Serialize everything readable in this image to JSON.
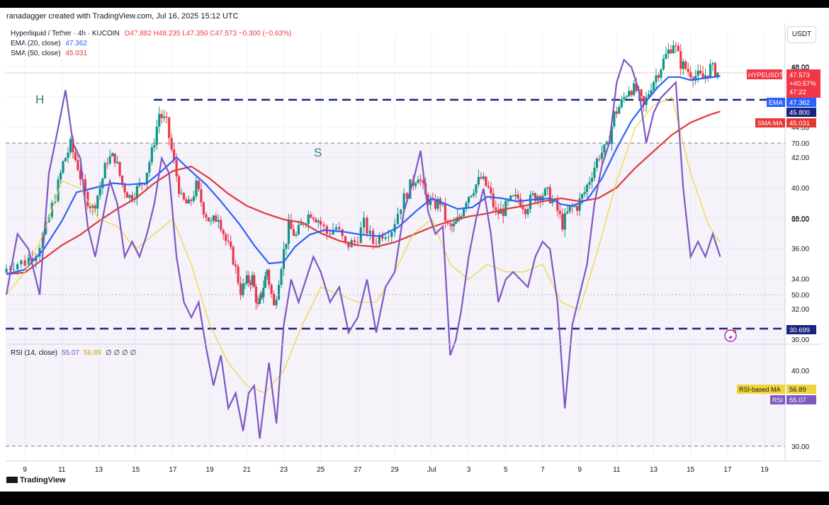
{
  "header": {
    "credit": "ranadagger created with TradingView.com, Jul 16, 2025 15:12 UTC",
    "symbol": "Hyperliquid / Tether · 4h · KUCOIN",
    "ohlc": {
      "o": "O47.882",
      "h": "H48.235",
      "l": "L47.350",
      "c": "C47.573",
      "chg": "−0.300 (−0.63%)"
    },
    "ema_label": "EMA (20, close)",
    "ema_value": "47.362",
    "sma_label": "SMA (50, close)",
    "sma_value": "45.031",
    "currency": "USDT"
  },
  "annotations": {
    "head": "H",
    "shoulder": "S"
  },
  "price_labels": {
    "symbol": "HYPEUSDT",
    "price": "47.573",
    "pct": "+40.57%",
    "countdown": "47:22",
    "ema_tag": "EMA",
    "ema": "47.362",
    "level_upper": "45.800",
    "sma_tag": "SMA:MA",
    "sma": "45.031",
    "level_lower": "30.699"
  },
  "rsi_header": {
    "label": "RSI (14, close)",
    "rsi": "55.07",
    "ma": "56.89",
    "extra": "∅ ∅ ∅ ∅"
  },
  "rsi_labels": {
    "ma_tag": "RSI-based MA",
    "ma": "56.89",
    "rsi_tag": "RSI",
    "rsi": "55.07"
  },
  "footer": {
    "logo": "TradingView"
  },
  "colors": {
    "up": "#089981",
    "down": "#f23645",
    "ema": "#2962ff",
    "sma": "#e53935",
    "rsi": "#7e57c2",
    "rsi_ma": "#f0d33a",
    "level": "#1a237e"
  },
  "chart_data": [
    {
      "type": "candlestick",
      "title": "Hyperliquid / Tether · 4h · KUCOIN",
      "ylim": [
        30,
        50
      ],
      "y_ticks": [
        30,
        32,
        34,
        36,
        38,
        40,
        42,
        44,
        46,
        48
      ],
      "x_ticks": [
        "9",
        "11",
        "13",
        "15",
        "17",
        "19",
        "21",
        "23",
        "25",
        "27",
        "29",
        "Jul",
        "3",
        "5",
        "7",
        "9",
        "11",
        "13",
        "15",
        "17",
        "19"
      ],
      "close_path": [
        [
          8.0,
          34.5
        ],
        [
          8.6,
          35.0
        ],
        [
          9.2,
          35.1
        ],
        [
          9.8,
          35.8
        ],
        [
          10.3,
          37.3
        ],
        [
          10.8,
          39.5
        ],
        [
          11.2,
          41.6
        ],
        [
          11.6,
          42.8
        ],
        [
          12.0,
          41.4
        ],
        [
          12.4,
          39.5
        ],
        [
          12.8,
          38.6
        ],
        [
          13.2,
          40.0
        ],
        [
          13.6,
          41.9
        ],
        [
          14.0,
          42.0
        ],
        [
          14.4,
          40.2
        ],
        [
          14.8,
          39.4
        ],
        [
          15.2,
          39.9
        ],
        [
          15.6,
          40.6
        ],
        [
          16.0,
          42.3
        ],
        [
          16.4,
          44.9
        ],
        [
          16.8,
          44.2
        ],
        [
          17.2,
          41.6
        ],
        [
          17.6,
          39.2
        ],
        [
          18.0,
          38.8
        ],
        [
          18.4,
          40.1
        ],
        [
          18.8,
          38.6
        ],
        [
          19.2,
          37.6
        ],
        [
          19.6,
          38.2
        ],
        [
          20.0,
          36.5
        ],
        [
          20.4,
          35.3
        ],
        [
          20.8,
          33.2
        ],
        [
          21.1,
          33.8
        ],
        [
          21.4,
          34.0
        ],
        [
          21.7,
          32.1
        ],
        [
          21.9,
          33.0
        ],
        [
          22.2,
          34.6
        ],
        [
          22.6,
          32.1
        ],
        [
          23.0,
          35.0
        ],
        [
          23.4,
          37.4
        ],
        [
          23.8,
          36.8
        ],
        [
          24.2,
          37.8
        ],
        [
          24.6,
          38.4
        ],
        [
          25.0,
          37.9
        ],
        [
          25.5,
          37.0
        ],
        [
          26.0,
          37.4
        ],
        [
          26.5,
          36.2
        ],
        [
          27.0,
          36.4
        ],
        [
          27.5,
          37.6
        ],
        [
          28.0,
          36.4
        ],
        [
          28.5,
          37.0
        ],
        [
          29.0,
          37.3
        ],
        [
          29.5,
          38.9
        ],
        [
          30.0,
          40.1
        ],
        [
          30.4,
          40.9
        ],
        [
          30.8,
          39.4
        ],
        [
          31.2,
          38.8
        ],
        [
          31.6,
          39.1
        ],
        [
          32.0,
          37.4
        ],
        [
          32.3,
          37.4
        ],
        [
          32.6,
          38.0
        ],
        [
          33.0,
          39.3
        ],
        [
          33.4,
          40.0
        ],
        [
          33.8,
          40.6
        ],
        [
          34.2,
          39.9
        ],
        [
          34.6,
          38.3
        ],
        [
          35.0,
          38.5
        ],
        [
          35.4,
          39.1
        ],
        [
          35.8,
          39.3
        ],
        [
          36.2,
          38.7
        ],
        [
          36.6,
          39.4
        ],
        [
          37.0,
          39.6
        ],
        [
          37.4,
          39.6
        ],
        [
          37.8,
          38.9
        ],
        [
          38.2,
          37.6
        ],
        [
          38.6,
          38.6
        ],
        [
          39.0,
          38.8
        ],
        [
          39.4,
          39.7
        ],
        [
          39.8,
          41.0
        ],
        [
          40.2,
          42.2
        ],
        [
          40.6,
          42.6
        ],
        [
          41.0,
          44.8
        ],
        [
          41.4,
          45.6
        ],
        [
          41.8,
          46.6
        ],
        [
          42.2,
          46.4
        ],
        [
          42.6,
          45.3
        ],
        [
          43.0,
          46.8
        ],
        [
          43.4,
          47.7
        ],
        [
          43.8,
          48.7
        ],
        [
          44.2,
          49.6
        ],
        [
          44.6,
          48.2
        ],
        [
          45.0,
          47.7
        ],
        [
          45.4,
          47.4
        ],
        [
          45.8,
          47.2
        ],
        [
          46.2,
          47.9
        ],
        [
          46.6,
          47.6
        ]
      ],
      "ema": [
        [
          8.0,
          34.3
        ],
        [
          9.0,
          34.6
        ],
        [
          10.0,
          35.9
        ],
        [
          11.0,
          37.8
        ],
        [
          11.8,
          39.7
        ],
        [
          12.8,
          40.0
        ],
        [
          13.8,
          40.3
        ],
        [
          14.6,
          40.2
        ],
        [
          15.6,
          40.3
        ],
        [
          16.4,
          41.1
        ],
        [
          17.2,
          42.0
        ],
        [
          17.8,
          41.3
        ],
        [
          18.8,
          40.2
        ],
        [
          19.6,
          39.1
        ],
        [
          20.6,
          37.6
        ],
        [
          21.4,
          36.2
        ],
        [
          22.2,
          35.0
        ],
        [
          23.0,
          35.1
        ],
        [
          23.6,
          36.1
        ],
        [
          24.4,
          36.9
        ],
        [
          25.2,
          37.2
        ],
        [
          26.2,
          37.1
        ],
        [
          27.2,
          36.9
        ],
        [
          28.2,
          36.8
        ],
        [
          29.2,
          37.4
        ],
        [
          30.2,
          38.5
        ],
        [
          31.0,
          39.3
        ],
        [
          31.8,
          38.9
        ],
        [
          32.4,
          38.6
        ],
        [
          33.2,
          38.7
        ],
        [
          34.0,
          39.4
        ],
        [
          34.8,
          39.3
        ],
        [
          35.6,
          39.1
        ],
        [
          36.4,
          39.2
        ],
        [
          37.4,
          39.3
        ],
        [
          38.0,
          38.9
        ],
        [
          38.6,
          38.8
        ],
        [
          39.4,
          39.2
        ],
        [
          40.2,
          40.6
        ],
        [
          41.0,
          42.6
        ],
        [
          41.8,
          44.4
        ],
        [
          42.6,
          45.7
        ],
        [
          43.2,
          46.6
        ],
        [
          43.8,
          47.3
        ],
        [
          44.4,
          47.3
        ],
        [
          45.0,
          47.1
        ],
        [
          45.6,
          47.2
        ],
        [
          46.6,
          47.36
        ]
      ],
      "sma": [
        [
          8.0,
          34.3
        ],
        [
          9.0,
          34.4
        ],
        [
          10.0,
          35.3
        ],
        [
          11.0,
          36.2
        ],
        [
          12.0,
          36.9
        ],
        [
          13.0,
          37.8
        ],
        [
          14.0,
          38.6
        ],
        [
          15.0,
          39.3
        ],
        [
          16.0,
          40.3
        ],
        [
          17.0,
          41.1
        ],
        [
          18.0,
          41.4
        ],
        [
          19.0,
          40.6
        ],
        [
          20.0,
          39.6
        ],
        [
          21.0,
          38.8
        ],
        [
          22.0,
          38.3
        ],
        [
          23.0,
          37.9
        ],
        [
          24.0,
          37.7
        ],
        [
          25.0,
          37.0
        ],
        [
          26.0,
          36.5
        ],
        [
          27.0,
          36.2
        ],
        [
          28.0,
          36.1
        ],
        [
          29.0,
          36.4
        ],
        [
          30.0,
          36.9
        ],
        [
          31.0,
          37.4
        ],
        [
          32.0,
          37.8
        ],
        [
          33.0,
          38.1
        ],
        [
          34.0,
          38.3
        ],
        [
          35.0,
          38.6
        ],
        [
          36.0,
          38.8
        ],
        [
          37.0,
          39.1
        ],
        [
          38.0,
          39.3
        ],
        [
          39.0,
          39.1
        ],
        [
          40.0,
          39.3
        ],
        [
          41.0,
          40.0
        ],
        [
          42.0,
          41.3
        ],
        [
          43.0,
          42.4
        ],
        [
          44.0,
          43.5
        ],
        [
          45.0,
          44.3
        ],
        [
          46.0,
          44.8
        ],
        [
          46.6,
          45.031
        ]
      ],
      "levels": [
        45.8,
        30.699
      ],
      "last_price": 47.573
    },
    {
      "type": "line",
      "title": "RSI (14, close)",
      "ylim": [
        30,
        80
      ],
      "y_ticks": [
        30,
        40,
        50,
        60,
        70,
        80
      ],
      "bands": [
        30,
        70
      ],
      "rsi": [
        [
          8.0,
          50
        ],
        [
          8.6,
          58
        ],
        [
          9.2,
          56
        ],
        [
          9.8,
          50
        ],
        [
          10.3,
          66
        ],
        [
          10.8,
          72
        ],
        [
          11.2,
          77
        ],
        [
          11.6,
          70
        ],
        [
          12.0,
          68
        ],
        [
          12.4,
          59
        ],
        [
          12.8,
          55
        ],
        [
          13.2,
          60
        ],
        [
          13.6,
          65
        ],
        [
          14.0,
          62
        ],
        [
          14.4,
          55
        ],
        [
          14.8,
          57
        ],
        [
          15.2,
          55
        ],
        [
          15.6,
          58
        ],
        [
          16.0,
          62
        ],
        [
          16.4,
          68
        ],
        [
          16.8,
          66
        ],
        [
          17.2,
          55
        ],
        [
          17.6,
          49
        ],
        [
          18.0,
          47
        ],
        [
          18.4,
          49
        ],
        [
          18.8,
          43
        ],
        [
          19.2,
          38
        ],
        [
          19.6,
          42
        ],
        [
          20.0,
          35
        ],
        [
          20.4,
          37
        ],
        [
          20.8,
          32
        ],
        [
          21.1,
          37
        ],
        [
          21.4,
          38
        ],
        [
          21.7,
          31
        ],
        [
          21.9,
          35
        ],
        [
          22.2,
          41
        ],
        [
          22.6,
          33
        ],
        [
          23.0,
          46
        ],
        [
          23.4,
          52
        ],
        [
          23.8,
          49
        ],
        [
          24.2,
          52
        ],
        [
          24.6,
          55
        ],
        [
          25.0,
          53
        ],
        [
          25.5,
          49
        ],
        [
          26.0,
          51
        ],
        [
          26.5,
          45
        ],
        [
          27.0,
          47
        ],
        [
          27.5,
          52
        ],
        [
          28.0,
          45
        ],
        [
          28.5,
          51
        ],
        [
          29.0,
          53
        ],
        [
          29.5,
          61
        ],
        [
          30.0,
          65
        ],
        [
          30.4,
          69
        ],
        [
          30.8,
          61
        ],
        [
          31.2,
          58
        ],
        [
          31.6,
          59
        ],
        [
          32.0,
          42
        ],
        [
          32.3,
          44
        ],
        [
          32.6,
          48
        ],
        [
          33.0,
          55
        ],
        [
          33.4,
          60
        ],
        [
          33.8,
          64
        ],
        [
          34.2,
          58
        ],
        [
          34.6,
          49
        ],
        [
          35.0,
          52
        ],
        [
          35.4,
          53
        ],
        [
          35.8,
          52
        ],
        [
          36.2,
          51
        ],
        [
          36.6,
          55
        ],
        [
          37.0,
          57
        ],
        [
          37.4,
          56
        ],
        [
          37.8,
          49
        ],
        [
          38.2,
          35
        ],
        [
          38.6,
          46
        ],
        [
          39.0,
          50
        ],
        [
          39.4,
          54
        ],
        [
          39.8,
          62
        ],
        [
          40.2,
          67
        ],
        [
          40.6,
          70
        ],
        [
          41.0,
          78
        ],
        [
          41.4,
          81
        ],
        [
          41.8,
          80
        ],
        [
          42.2,
          77
        ],
        [
          42.6,
          70
        ],
        [
          43.0,
          74
        ],
        [
          43.4,
          76
        ],
        [
          43.8,
          77
        ],
        [
          44.2,
          78
        ],
        [
          44.6,
          64
        ],
        [
          45.0,
          55
        ],
        [
          45.4,
          57
        ],
        [
          45.8,
          55
        ],
        [
          46.2,
          58
        ],
        [
          46.6,
          55
        ]
      ],
      "rsi_ma": [
        [
          8.0,
          50
        ],
        [
          9.0,
          53
        ],
        [
          10.0,
          58
        ],
        [
          11.0,
          65
        ],
        [
          12.0,
          64
        ],
        [
          13.0,
          60
        ],
        [
          14.0,
          59
        ],
        [
          15.0,
          56
        ],
        [
          16.0,
          58
        ],
        [
          17.0,
          60
        ],
        [
          18.0,
          54
        ],
        [
          19.0,
          46
        ],
        [
          20.0,
          41
        ],
        [
          21.0,
          38
        ],
        [
          22.0,
          37
        ],
        [
          23.0,
          40
        ],
        [
          24.0,
          46
        ],
        [
          25.0,
          51
        ],
        [
          26.0,
          50
        ],
        [
          27.0,
          49
        ],
        [
          28.0,
          49
        ],
        [
          29.0,
          53
        ],
        [
          30.0,
          58
        ],
        [
          31.0,
          60
        ],
        [
          32.0,
          54
        ],
        [
          33.0,
          52
        ],
        [
          34.0,
          54
        ],
        [
          35.0,
          53
        ],
        [
          36.0,
          53
        ],
        [
          37.0,
          54
        ],
        [
          38.0,
          49
        ],
        [
          39.0,
          48
        ],
        [
          40.0,
          56
        ],
        [
          41.0,
          65
        ],
        [
          42.0,
          72
        ],
        [
          43.0,
          75
        ],
        [
          44.0,
          76
        ],
        [
          45.0,
          66
        ],
        [
          46.0,
          59
        ],
        [
          46.6,
          56.89
        ]
      ]
    }
  ]
}
